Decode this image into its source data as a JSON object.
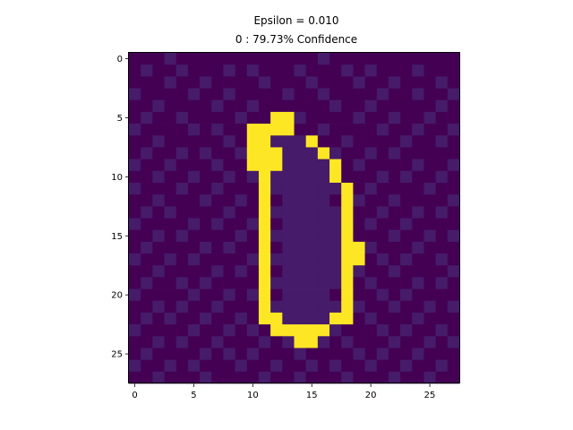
{
  "title_line1": "Epsilon = 0.010",
  "title_line2": "0 : 79.73% Confidence",
  "chart_data": {
    "type": "heatmap",
    "title": "Epsilon = 0.010\n0 : 79.73% Confidence",
    "colormap": "viridis",
    "colors": {
      "background": "#440154",
      "foreground": "#fde725"
    },
    "grid": false,
    "xlim": [
      -0.5,
      27.5
    ],
    "ylim": [
      27.5,
      -0.5
    ],
    "x_ticks": [
      0,
      5,
      10,
      15,
      20,
      25
    ],
    "y_ticks": [
      0,
      5,
      10,
      15,
      20,
      25
    ],
    "shape": [
      28,
      28
    ],
    "note_background_values": "perturbed background pixels around 0.00-0.02 (dark purple), digit strokes near 1.0 (yellow)",
    "foreground_cells": {
      "5": [
        12,
        13
      ],
      "6": [
        10,
        11,
        12,
        13
      ],
      "7": [
        10,
        11,
        15
      ],
      "8": [
        10,
        11,
        12,
        16
      ],
      "9": [
        10,
        11,
        12,
        17
      ],
      "10": [
        11,
        17
      ],
      "11": [
        11,
        18
      ],
      "12": [
        11,
        18
      ],
      "13": [
        11,
        18
      ],
      "14": [
        11,
        18
      ],
      "15": [
        11,
        18
      ],
      "16": [
        11,
        18,
        19
      ],
      "17": [
        11,
        18,
        19
      ],
      "18": [
        11,
        18
      ],
      "19": [
        11,
        18
      ],
      "20": [
        11,
        18
      ],
      "21": [
        11,
        18
      ],
      "22": [
        11,
        12,
        17,
        18
      ],
      "23": [
        12,
        13,
        14,
        15,
        16
      ],
      "24": [
        14,
        15
      ]
    },
    "background_values": [
      [
        0.0,
        0.0,
        0.0,
        0.02,
        0.0,
        0.0,
        0.0,
        0.0,
        0.0,
        0.0,
        0.0,
        0.0,
        0.0,
        0.0,
        0.0,
        0.0,
        0.02,
        0.0,
        0.0,
        0.0,
        0.0,
        0.0,
        0.0,
        0.0,
        0.0,
        0.0,
        0.0,
        0.0
      ],
      [
        0.0,
        0.02,
        0.0,
        0.0,
        0.02,
        0.0,
        0.0,
        0.0,
        0.02,
        0.0,
        0.02,
        0.0,
        0.0,
        0.0,
        0.02,
        0.0,
        0.0,
        0.0,
        0.02,
        0.0,
        0.02,
        0.0,
        0.0,
        0.0,
        0.02,
        0.0,
        0.0,
        0.0
      ],
      [
        0.0,
        0.0,
        0.0,
        0.02,
        0.0,
        0.0,
        0.02,
        0.0,
        0.0,
        0.0,
        0.0,
        0.02,
        0.0,
        0.0,
        0.0,
        0.02,
        0.0,
        0.0,
        0.0,
        0.02,
        0.0,
        0.0,
        0.02,
        0.0,
        0.0,
        0.0,
        0.02,
        0.0
      ],
      [
        0.02,
        0.0,
        0.0,
        0.0,
        0.0,
        0.02,
        0.0,
        0.0,
        0.02,
        0.0,
        0.0,
        0.0,
        0.0,
        0.02,
        0.0,
        0.0,
        0.02,
        0.0,
        0.0,
        0.0,
        0.0,
        0.02,
        0.0,
        0.0,
        0.02,
        0.0,
        0.0,
        0.02
      ],
      [
        0.0,
        0.0,
        0.02,
        0.0,
        0.0,
        0.0,
        0.0,
        0.02,
        0.0,
        0.0,
        0.02,
        0.0,
        0.0,
        0.0,
        0.0,
        0.0,
        0.0,
        0.02,
        0.0,
        0.0,
        0.02,
        0.0,
        0.0,
        0.0,
        0.0,
        0.0,
        0.02,
        0.0
      ],
      [
        0.0,
        0.02,
        0.0,
        0.0,
        0.02,
        0.0,
        0.0,
        0.0,
        0.0,
        0.02,
        0.0,
        0.0,
        0.0,
        0.0,
        0.02,
        0.0,
        0.0,
        0.0,
        0.0,
        0.02,
        0.0,
        0.0,
        0.02,
        0.0,
        0.0,
        0.02,
        0.0,
        0.0
      ],
      [
        0.02,
        0.0,
        0.0,
        0.0,
        0.0,
        0.02,
        0.0,
        0.02,
        0.0,
        0.0,
        0.0,
        0.0,
        0.0,
        0.0,
        0.0,
        0.0,
        0.02,
        0.0,
        0.0,
        0.0,
        0.0,
        0.02,
        0.0,
        0.0,
        0.02,
        0.0,
        0.0,
        0.02
      ],
      [
        0.0,
        0.0,
        0.02,
        0.0,
        0.0,
        0.0,
        0.0,
        0.0,
        0.02,
        0.0,
        0.0,
        0.0,
        0.02,
        0.02,
        0.02,
        0.0,
        0.0,
        0.0,
        0.02,
        0.0,
        0.0,
        0.0,
        0.0,
        0.02,
        0.0,
        0.0,
        0.02,
        0.0
      ],
      [
        0.0,
        0.02,
        0.0,
        0.0,
        0.02,
        0.0,
        0.02,
        0.0,
        0.0,
        0.02,
        0.0,
        0.0,
        0.0,
        0.02,
        0.02,
        0.02,
        0.0,
        0.02,
        0.0,
        0.0,
        0.02,
        0.0,
        0.02,
        0.0,
        0.0,
        0.0,
        0.0,
        0.0
      ],
      [
        0.02,
        0.0,
        0.0,
        0.02,
        0.0,
        0.0,
        0.0,
        0.02,
        0.0,
        0.0,
        0.0,
        0.0,
        0.0,
        0.02,
        0.02,
        0.02,
        0.02,
        0.0,
        0.0,
        0.02,
        0.0,
        0.0,
        0.0,
        0.0,
        0.02,
        0.0,
        0.0,
        0.02
      ],
      [
        0.0,
        0.0,
        0.02,
        0.0,
        0.0,
        0.02,
        0.0,
        0.0,
        0.02,
        0.0,
        0.02,
        0.0,
        0.02,
        0.02,
        0.02,
        0.02,
        0.02,
        0.0,
        0.0,
        0.0,
        0.0,
        0.02,
        0.0,
        0.02,
        0.0,
        0.0,
        0.02,
        0.0
      ],
      [
        0.02,
        0.0,
        0.0,
        0.0,
        0.02,
        0.0,
        0.0,
        0.02,
        0.0,
        0.0,
        0.0,
        0.0,
        0.02,
        0.02,
        0.02,
        0.02,
        0.02,
        0.02,
        0.0,
        0.0,
        0.02,
        0.0,
        0.0,
        0.0,
        0.0,
        0.02,
        0.0,
        0.0
      ],
      [
        0.0,
        0.0,
        0.02,
        0.0,
        0.0,
        0.0,
        0.02,
        0.0,
        0.0,
        0.02,
        0.0,
        0.0,
        0.0,
        0.02,
        0.02,
        0.02,
        0.02,
        0.0,
        0.0,
        0.02,
        0.0,
        0.0,
        0.02,
        0.0,
        0.0,
        0.0,
        0.0,
        0.02
      ],
      [
        0.0,
        0.02,
        0.0,
        0.02,
        0.0,
        0.0,
        0.0,
        0.0,
        0.02,
        0.0,
        0.0,
        0.0,
        0.02,
        0.02,
        0.02,
        0.02,
        0.02,
        0.02,
        0.0,
        0.0,
        0.0,
        0.02,
        0.0,
        0.0,
        0.02,
        0.0,
        0.02,
        0.0
      ],
      [
        0.02,
        0.0,
        0.0,
        0.0,
        0.0,
        0.02,
        0.0,
        0.02,
        0.0,
        0.0,
        0.02,
        0.0,
        0.0,
        0.02,
        0.02,
        0.02,
        0.02,
        0.02,
        0.0,
        0.0,
        0.02,
        0.0,
        0.0,
        0.02,
        0.0,
        0.0,
        0.0,
        0.0
      ],
      [
        0.0,
        0.0,
        0.02,
        0.0,
        0.02,
        0.0,
        0.0,
        0.0,
        0.0,
        0.02,
        0.0,
        0.0,
        0.02,
        0.02,
        0.02,
        0.02,
        0.02,
        0.02,
        0.0,
        0.0,
        0.0,
        0.0,
        0.02,
        0.0,
        0.0,
        0.02,
        0.0,
        0.02
      ],
      [
        0.0,
        0.02,
        0.0,
        0.0,
        0.0,
        0.0,
        0.02,
        0.0,
        0.02,
        0.0,
        0.0,
        0.0,
        0.0,
        0.02,
        0.02,
        0.02,
        0.02,
        0.02,
        0.0,
        0.0,
        0.02,
        0.0,
        0.0,
        0.0,
        0.02,
        0.0,
        0.0,
        0.0
      ],
      [
        0.02,
        0.0,
        0.0,
        0.02,
        0.0,
        0.02,
        0.0,
        0.0,
        0.0,
        0.0,
        0.02,
        0.0,
        0.02,
        0.02,
        0.02,
        0.02,
        0.02,
        0.02,
        0.0,
        0.0,
        0.0,
        0.02,
        0.0,
        0.02,
        0.0,
        0.0,
        0.02,
        0.0
      ],
      [
        0.0,
        0.0,
        0.02,
        0.0,
        0.0,
        0.0,
        0.0,
        0.02,
        0.0,
        0.02,
        0.0,
        0.0,
        0.0,
        0.02,
        0.02,
        0.02,
        0.02,
        0.02,
        0.0,
        0.02,
        0.0,
        0.0,
        0.02,
        0.0,
        0.0,
        0.0,
        0.0,
        0.02
      ],
      [
        0.0,
        0.02,
        0.0,
        0.0,
        0.02,
        0.0,
        0.02,
        0.0,
        0.0,
        0.0,
        0.0,
        0.0,
        0.02,
        0.02,
        0.02,
        0.02,
        0.02,
        0.02,
        0.0,
        0.0,
        0.02,
        0.0,
        0.0,
        0.0,
        0.02,
        0.0,
        0.02,
        0.0
      ],
      [
        0.02,
        0.0,
        0.0,
        0.0,
        0.0,
        0.02,
        0.0,
        0.0,
        0.02,
        0.0,
        0.02,
        0.0,
        0.0,
        0.02,
        0.02,
        0.02,
        0.02,
        0.0,
        0.0,
        0.0,
        0.0,
        0.02,
        0.0,
        0.02,
        0.0,
        0.0,
        0.0,
        0.0
      ],
      [
        0.0,
        0.0,
        0.02,
        0.0,
        0.02,
        0.0,
        0.0,
        0.02,
        0.0,
        0.0,
        0.0,
        0.0,
        0.02,
        0.02,
        0.02,
        0.02,
        0.02,
        0.02,
        0.0,
        0.02,
        0.0,
        0.0,
        0.02,
        0.0,
        0.0,
        0.02,
        0.0,
        0.02
      ],
      [
        0.0,
        0.02,
        0.0,
        0.02,
        0.0,
        0.0,
        0.02,
        0.0,
        0.0,
        0.02,
        0.0,
        0.0,
        0.0,
        0.02,
        0.02,
        0.02,
        0.02,
        0.0,
        0.0,
        0.0,
        0.02,
        0.0,
        0.0,
        0.0,
        0.02,
        0.0,
        0.0,
        0.0
      ],
      [
        0.02,
        0.0,
        0.0,
        0.0,
        0.0,
        0.02,
        0.0,
        0.0,
        0.02,
        0.0,
        0.02,
        0.0,
        0.0,
        0.0,
        0.0,
        0.0,
        0.0,
        0.02,
        0.0,
        0.0,
        0.0,
        0.02,
        0.0,
        0.02,
        0.0,
        0.0,
        0.02,
        0.0
      ],
      [
        0.0,
        0.0,
        0.02,
        0.0,
        0.02,
        0.0,
        0.0,
        0.02,
        0.0,
        0.0,
        0.0,
        0.02,
        0.0,
        0.02,
        0.0,
        0.0,
        0.02,
        0.0,
        0.02,
        0.0,
        0.0,
        0.0,
        0.02,
        0.0,
        0.0,
        0.02,
        0.0,
        0.02
      ],
      [
        0.0,
        0.02,
        0.0,
        0.0,
        0.0,
        0.0,
        0.02,
        0.0,
        0.02,
        0.0,
        0.02,
        0.0,
        0.0,
        0.0,
        0.02,
        0.0,
        0.0,
        0.0,
        0.0,
        0.02,
        0.0,
        0.02,
        0.0,
        0.0,
        0.02,
        0.0,
        0.0,
        0.0
      ],
      [
        0.02,
        0.0,
        0.0,
        0.02,
        0.0,
        0.02,
        0.0,
        0.0,
        0.0,
        0.02,
        0.0,
        0.0,
        0.02,
        0.0,
        0.0,
        0.02,
        0.0,
        0.02,
        0.0,
        0.0,
        0.02,
        0.0,
        0.0,
        0.02,
        0.0,
        0.0,
        0.02,
        0.0
      ],
      [
        0.0,
        0.0,
        0.02,
        0.0,
        0.0,
        0.0,
        0.02,
        0.0,
        0.0,
        0.0,
        0.0,
        0.02,
        0.0,
        0.0,
        0.02,
        0.0,
        0.0,
        0.0,
        0.02,
        0.0,
        0.0,
        0.0,
        0.02,
        0.0,
        0.0,
        0.02,
        0.0,
        0.0
      ]
    ]
  }
}
